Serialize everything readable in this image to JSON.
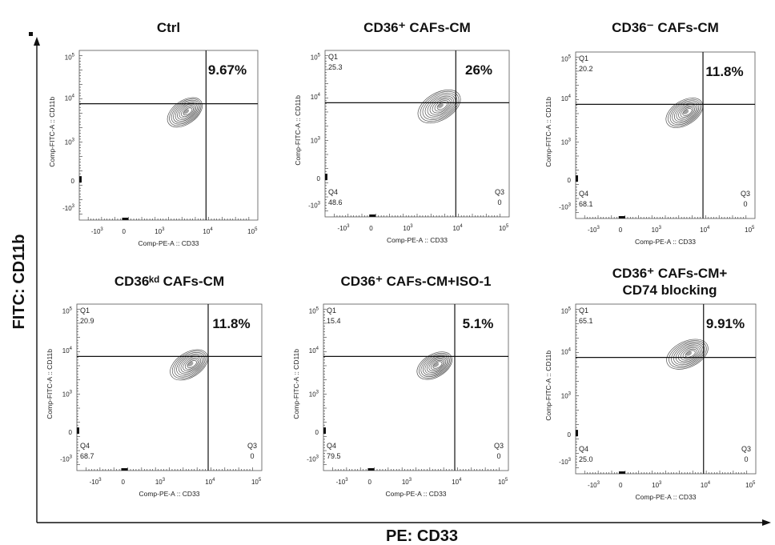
{
  "figure": {
    "outer_x_label": "PE: CD33",
    "outer_y_label": "FITC: CD11b"
  },
  "chart_data": [
    {
      "type": "scatter",
      "title": "Ctrl",
      "xlabel": "Comp-PE-A :: CD33",
      "ylabel": "Comp-FITC-A :: CD11b",
      "x_scale": "biexponential",
      "y_scale": "biexponential",
      "x_ticks": [
        "-10^3",
        "0",
        "10^3",
        "10^4",
        "10^5"
      ],
      "y_ticks": [
        "10^5",
        "10^4",
        "10^3",
        "0",
        "-10^3"
      ],
      "gate_x": 10000,
      "gate_y": 8000,
      "quadrants": {
        "Q1": "",
        "Q2": "9.67%",
        "Q3": "",
        "Q4": ""
      },
      "population": {
        "center_x": 3500,
        "center_y": 5000,
        "spread": 0.35,
        "tilt_deg": 35
      }
    },
    {
      "type": "scatter",
      "title": "CD36⁺ CAFs-CM",
      "xlabel": "Comp-PE-A :: CD33",
      "ylabel": "Comp-FITC-A :: CD11b",
      "x_scale": "biexponential",
      "y_scale": "biexponential",
      "x_ticks": [
        "-10^3",
        "0",
        "10^3",
        "10^4",
        "10^5"
      ],
      "y_ticks": [
        "10^5",
        "10^4",
        "10^3",
        "0",
        "-10^3"
      ],
      "gate_x": 10000,
      "gate_y": 8000,
      "quadrants": {
        "Q1": "25.3",
        "Q2": "26%",
        "Q3": "0",
        "Q4": "48.6"
      },
      "population": {
        "center_x": 4500,
        "center_y": 6500,
        "spread": 0.5,
        "tilt_deg": 30
      }
    },
    {
      "type": "scatter",
      "title": "CD36⁻ CAFs-CM",
      "xlabel": "Comp-PE-A :: CD33",
      "ylabel": "Comp-FITC-A :: CD11b",
      "x_scale": "biexponential",
      "y_scale": "biexponential",
      "x_ticks": [
        "-10^3",
        "0",
        "10^3",
        "10^4",
        "10^5"
      ],
      "y_ticks": [
        "10^5",
        "10^4",
        "10^3",
        "0",
        "-10^3"
      ],
      "gate_x": 10000,
      "gate_y": 8000,
      "quadrants": {
        "Q1": "20.2",
        "Q2": "11.8%",
        "Q3": "0",
        "Q4": "68.1"
      },
      "population": {
        "center_x": 4000,
        "center_y": 5000,
        "spread": 0.38,
        "tilt_deg": 32
      }
    },
    {
      "type": "scatter",
      "title": "CD36ᵏᵈ CAFs-CM",
      "xlabel": "Comp-PE-A :: CD33",
      "ylabel": "Comp-FITC-A :: CD11b",
      "x_scale": "biexponential",
      "y_scale": "biexponential",
      "x_ticks": [
        "-10^3",
        "0",
        "10^3",
        "10^4",
        "10^5"
      ],
      "y_ticks": [
        "10^5",
        "10^4",
        "10^3",
        "0",
        "-10^3"
      ],
      "gate_x": 10000,
      "gate_y": 8000,
      "quadrants": {
        "Q1": "20.9",
        "Q2": "11.8%",
        "Q3": "0",
        "Q4": "68.7"
      },
      "population": {
        "center_x": 4000,
        "center_y": 5000,
        "spread": 0.4,
        "tilt_deg": 32
      }
    },
    {
      "type": "scatter",
      "title": "CD36⁺ CAFs-CM+ISO-1",
      "xlabel": "Comp-PE-A :: CD33",
      "ylabel": "Comp-FITC-A :: CD11b",
      "x_scale": "biexponential",
      "y_scale": "biexponential",
      "x_ticks": [
        "-10^3",
        "0",
        "10^3",
        "10^4",
        "10^5"
      ],
      "y_ticks": [
        "10^5",
        "10^4",
        "10^3",
        "0",
        "-10^3"
      ],
      "gate_x": 10000,
      "gate_y": 8000,
      "quadrants": {
        "Q1": "15.4",
        "Q2": "5.1%",
        "Q3": "0",
        "Q4": "79.5"
      },
      "population": {
        "center_x": 3800,
        "center_y": 4800,
        "spread": 0.33,
        "tilt_deg": 30
      }
    },
    {
      "type": "scatter",
      "title": "CD36⁺ CAFs-CM+\nCD74 blocking",
      "xlabel": "Comp-PE-A :: CD33",
      "ylabel": "Comp-FITC-A :: CD11b",
      "x_scale": "biexponential",
      "y_scale": "biexponential",
      "x_ticks": [
        "-10^3",
        "0",
        "10^3",
        "10^4",
        "10^5"
      ],
      "y_ticks": [
        "10^5",
        "10^4",
        "10^3",
        "0",
        "-10^3"
      ],
      "gate_x": 10000,
      "gate_y": 8000,
      "quadrants": {
        "Q1": "65.1",
        "Q2": "9.91%",
        "Q3": "0",
        "Q4": "25.0"
      },
      "population": {
        "center_x": 4500,
        "center_y": 9500,
        "spread": 0.45,
        "tilt_deg": 25
      }
    }
  ]
}
